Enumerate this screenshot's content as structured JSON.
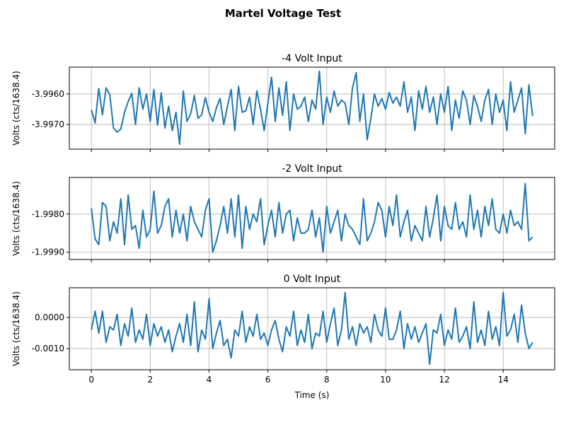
{
  "chart_data": [
    {
      "type": "line",
      "suptitle": "Martel Voltage Test",
      "title": "-4 Volt Input",
      "xlabel": "",
      "ylabel": "Volts (cts/1638.4)",
      "x_range": [
        0,
        15
      ],
      "xlim": [
        -0.75,
        15.75
      ],
      "ylim": [
        -3.99781,
        -3.99512
      ],
      "xticks": [
        0,
        2,
        4,
        6,
        8,
        10,
        12,
        14
      ],
      "xtick_labels": [],
      "yticks": [
        -3.996,
        -3.997
      ],
      "ytick_labels": [
        "-3.9960",
        "-3.9970"
      ],
      "grid": true,
      "color": "#1f77b4",
      "values": [
        -3.99652,
        -3.99695,
        -3.99582,
        -3.99668,
        -3.9958,
        -3.99602,
        -3.99712,
        -3.99725,
        -3.99715,
        -3.9966,
        -3.99625,
        -3.99598,
        -3.997,
        -3.9958,
        -3.9965,
        -3.996,
        -3.9969,
        -3.99585,
        -3.99702,
        -3.99596,
        -3.99712,
        -3.9964,
        -3.9972,
        -3.9966,
        -3.99765,
        -3.9959,
        -3.9969,
        -3.99665,
        -3.99605,
        -3.9968,
        -3.99668,
        -3.99612,
        -3.9966,
        -3.9969,
        -3.99645,
        -3.99615,
        -3.997,
        -3.9964,
        -3.99585,
        -3.9972,
        -3.99575,
        -3.9966,
        -3.99655,
        -3.9961,
        -3.997,
        -3.9959,
        -3.9965,
        -3.9972,
        -3.9963,
        -3.99545,
        -3.9969,
        -3.9958,
        -3.9967,
        -3.9956,
        -3.9972,
        -3.996,
        -3.9965,
        -3.9964,
        -3.9961,
        -3.9969,
        -3.9962,
        -3.9965,
        -3.99525,
        -3.997,
        -3.9961,
        -3.9966,
        -3.9959,
        -3.9964,
        -3.9962,
        -3.9963,
        -3.997,
        -3.9958,
        -3.9953,
        -3.9969,
        -3.996,
        -3.9975,
        -3.9968,
        -3.996,
        -3.9964,
        -3.99615,
        -3.9965,
        -3.99595,
        -3.9963,
        -3.9961,
        -3.9964,
        -3.9956,
        -3.9966,
        -3.9961,
        -3.9972,
        -3.9959,
        -3.9965,
        -3.99575,
        -3.9966,
        -3.9961,
        -3.997,
        -3.996,
        -3.9966,
        -3.99575,
        -3.9972,
        -3.9962,
        -3.9968,
        -3.9959,
        -3.9962,
        -3.997,
        -3.99605,
        -3.9964,
        -3.9969,
        -3.9962,
        -3.99585,
        -3.997,
        -3.996,
        -3.9966,
        -3.9962,
        -3.9972,
        -3.9956,
        -3.9966,
        -3.9962,
        -3.9958,
        -3.9973,
        -3.9957,
        -3.99672
      ]
    },
    {
      "type": "line",
      "title": "-2 Volt Input",
      "xlabel": "",
      "ylabel": "Volts (cts/1638.4)",
      "x_range": [
        0,
        15
      ],
      "xlim": [
        -0.75,
        15.75
      ],
      "ylim": [
        -1.99919,
        -1.99704
      ],
      "xticks": [
        0,
        2,
        4,
        6,
        8,
        10,
        12,
        14
      ],
      "xtick_labels": [],
      "yticks": [
        -1.998,
        -1.999
      ],
      "ytick_labels": [
        "-1.9980",
        "-1.9990"
      ],
      "grid": true,
      "color": "#1f77b4",
      "values": [
        -1.99785,
        -1.99865,
        -1.9988,
        -1.9977,
        -1.9978,
        -1.9987,
        -1.9982,
        -1.9985,
        -1.9976,
        -1.9988,
        -1.9975,
        -1.9984,
        -1.9983,
        -1.9989,
        -1.9979,
        -1.9986,
        -1.9984,
        -1.9974,
        -1.9985,
        -1.9983,
        -1.9978,
        -1.9976,
        -1.9986,
        -1.9979,
        -1.9985,
        -1.998,
        -1.9987,
        -1.9978,
        -1.9982,
        -1.9984,
        -1.9986,
        -1.9979,
        -1.9976,
        -1.999,
        -1.9987,
        -1.9983,
        -1.9978,
        -1.9985,
        -1.9976,
        -1.9986,
        -1.9975,
        -1.9989,
        -1.9978,
        -1.9984,
        -1.998,
        -1.9982,
        -1.9976,
        -1.9988,
        -1.9983,
        -1.9979,
        -1.9986,
        -1.9977,
        -1.9985,
        -1.998,
        -1.9979,
        -1.9987,
        -1.9981,
        -1.9985,
        -1.9985,
        -1.9984,
        -1.9979,
        -1.9986,
        -1.9981,
        -1.999,
        -1.9978,
        -1.9985,
        -1.9982,
        -1.9979,
        -1.9987,
        -1.998,
        -1.9983,
        -1.9984,
        -1.9986,
        -1.9988,
        -1.9976,
        -1.9987,
        -1.9985,
        -1.9982,
        -1.9977,
        -1.9979,
        -1.9986,
        -1.9978,
        -1.9983,
        -1.9975,
        -1.9986,
        -1.9982,
        -1.9979,
        -1.9987,
        -1.9983,
        -1.9985,
        -1.9987,
        -1.9978,
        -1.9986,
        -1.9981,
        -1.9975,
        -1.9987,
        -1.9978,
        -1.9983,
        -1.9984,
        -1.9977,
        -1.9984,
        -1.9982,
        -1.9986,
        -1.9975,
        -1.9984,
        -1.9979,
        -1.9986,
        -1.9978,
        -1.9983,
        -1.9976,
        -1.9984,
        -1.9985,
        -1.998,
        -1.9985,
        -1.9979,
        -1.9983,
        -1.9982,
        -1.9984,
        -1.9972,
        -1.9987,
        -1.9986
      ]
    },
    {
      "type": "line",
      "title": "0 Volt Input",
      "xlabel": "Time (s)",
      "ylabel": "Volts (cts/1638.4)",
      "x_range": [
        0,
        15
      ],
      "xlim": [
        -0.75,
        15.75
      ],
      "ylim": [
        -0.00168,
        0.000955
      ],
      "xticks": [
        0,
        2,
        4,
        6,
        8,
        10,
        12,
        14
      ],
      "xtick_labels": [
        "0",
        "2",
        "4",
        "6",
        "8",
        "10",
        "12",
        "14"
      ],
      "yticks": [
        0,
        -0.001
      ],
      "ytick_labels": [
        "0.0000",
        "-0.0010"
      ],
      "grid": true,
      "color": "#1f77b4",
      "values": [
        -0.0004,
        0.0002,
        -0.0005,
        0.0002,
        -0.0008,
        -0.0003,
        -0.0004,
        0.0001,
        -0.0009,
        -0.0002,
        -0.0006,
        0.0003,
        -0.0008,
        -0.0004,
        -0.0007,
        0.0001,
        -0.0009,
        -0.0002,
        -0.0006,
        -0.0003,
        -0.0008,
        -0.0004,
        -0.0011,
        -0.0006,
        -0.0002,
        -0.0008,
        0.0001,
        -0.0009,
        0.0005,
        -0.0011,
        -0.0004,
        -0.0007,
        0.0006,
        -0.001,
        -0.0005,
        -0.0001,
        -0.0009,
        -0.0007,
        -0.0013,
        -0.0004,
        -0.0006,
        0.0002,
        -0.0008,
        -0.0003,
        -0.0006,
        0.0001,
        -0.0007,
        -0.0005,
        -0.0009,
        -0.0004,
        -0.0001,
        -0.0007,
        -0.0011,
        -0.0003,
        -0.0006,
        0.0002,
        -0.0009,
        -0.0004,
        -0.0008,
        0.0001,
        -0.001,
        -0.0005,
        -0.0006,
        0.0002,
        -0.0008,
        -0.0002,
        0.0003,
        -0.0009,
        -0.0004,
        0.0008,
        -0.0007,
        -0.0003,
        -0.0009,
        -0.0002,
        -0.0005,
        -0.0003,
        -0.0008,
        0.0001,
        -0.0004,
        -0.0006,
        0.0003,
        -0.0007,
        -0.0007,
        -0.0004,
        0.0002,
        -0.001,
        -0.0002,
        -0.0007,
        -0.0003,
        -0.0008,
        -0.0005,
        -0.0002,
        -0.0015,
        -0.0004,
        -0.0005,
        0.0001,
        -0.0009,
        -0.0004,
        -0.0007,
        0.0003,
        -0.0008,
        -0.0006,
        -0.0003,
        -0.001,
        0.0005,
        -0.0008,
        -0.0004,
        -0.0009,
        0.0002,
        -0.0007,
        -0.0003,
        -0.0009,
        0.0008,
        -0.0006,
        -0.0004,
        0.0001,
        -0.0008,
        0.0004,
        -0.0005,
        -0.001,
        -0.0008
      ]
    }
  ]
}
